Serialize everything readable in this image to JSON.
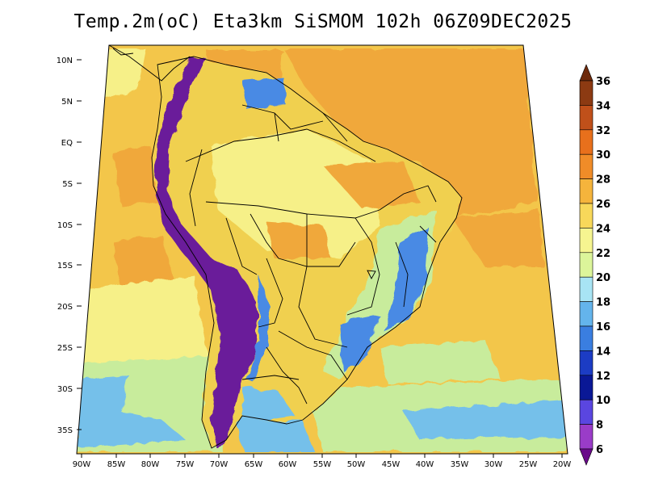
{
  "title": "Temp.2m(oC) Eta3km SiSMOM 102h 06Z09DEC2025",
  "map": {
    "variable": "2 m temperature",
    "units": "oC",
    "lat_labels": [
      "10N",
      "5N",
      "EQ",
      "5S",
      "10S",
      "15S",
      "20S",
      "25S",
      "30S",
      "35S"
    ],
    "lon_labels": [
      "90W",
      "85W",
      "80W",
      "75W",
      "70W",
      "65W",
      "60W",
      "55W",
      "50W",
      "45W",
      "40W",
      "35W",
      "30W",
      "25W",
      "20W"
    ]
  },
  "colorbar": {
    "levels": [
      "36",
      "34",
      "32",
      "30",
      "28",
      "26",
      "24",
      "22",
      "20",
      "18",
      "16",
      "14",
      "12",
      "10",
      "8",
      "6"
    ],
    "colors": [
      "#6e2a0c",
      "#8c3a12",
      "#c0501a",
      "#e8701c",
      "#f08c28",
      "#f5b43c",
      "#f8d85a",
      "#f6f590",
      "#dcf59a",
      "#a8e4f4",
      "#64b4ec",
      "#3a7ee0",
      "#1c3cc4",
      "#0a1896",
      "#5a46e0",
      "#9a3cc8",
      "#6a0a8a"
    ]
  },
  "palette": {
    "ocean": "#f3c64a",
    "ocean_warm": "#f0a83a",
    "ocean_cool": "#f6f088",
    "ocean_south": "#c8ec9c",
    "ocean_cold": "#74c0ea",
    "land": "#f0d050",
    "andes": "#6a1a9a",
    "highland": "#4a8ae4"
  }
}
